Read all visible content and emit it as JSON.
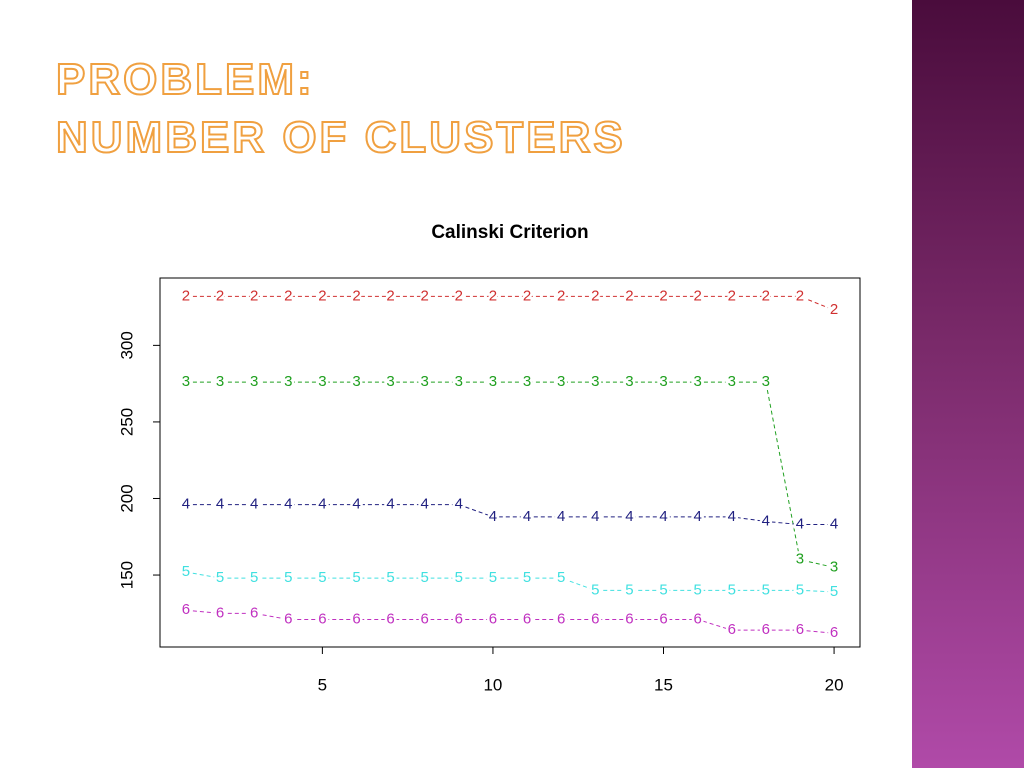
{
  "slide": {
    "title_lines": [
      "PROBLEM:",
      "NUMBER OF CLUSTERS"
    ]
  },
  "chart_data": {
    "type": "line",
    "title": "Calinski Criterion",
    "x": [
      1,
      2,
      3,
      4,
      5,
      6,
      7,
      8,
      9,
      10,
      11,
      12,
      13,
      14,
      15,
      16,
      17,
      18,
      19,
      20
    ],
    "series": [
      {
        "name": "2",
        "color": "#d03030",
        "values": [
          332,
          332,
          332,
          332,
          332,
          332,
          332,
          332,
          332,
          332,
          332,
          332,
          332,
          332,
          332,
          332,
          332,
          332,
          332,
          323
        ]
      },
      {
        "name": "3",
        "color": "#20a020",
        "values": [
          276,
          276,
          276,
          276,
          276,
          276,
          276,
          276,
          276,
          276,
          276,
          276,
          276,
          276,
          276,
          276,
          276,
          276,
          160,
          155
        ]
      },
      {
        "name": "4",
        "color": "#202080",
        "values": [
          196,
          196,
          196,
          196,
          196,
          196,
          196,
          196,
          196,
          188,
          188,
          188,
          188,
          188,
          188,
          188,
          188,
          185,
          183,
          183
        ]
      },
      {
        "name": "5",
        "color": "#40e0e0",
        "values": [
          152,
          148,
          148,
          148,
          148,
          148,
          148,
          148,
          148,
          148,
          148,
          148,
          140,
          140,
          140,
          140,
          140,
          140,
          140,
          139
        ]
      },
      {
        "name": "6",
        "color": "#c030c0",
        "values": [
          127,
          125,
          125,
          121,
          121,
          121,
          121,
          121,
          121,
          121,
          121,
          121,
          121,
          121,
          121,
          121,
          114,
          114,
          114,
          112
        ]
      }
    ],
    "xlim": [
      0.24,
      20.76
    ],
    "xticks": [
      5,
      10,
      15,
      20
    ],
    "ylim": [
      103,
      344
    ],
    "yticks": [
      150,
      200,
      250,
      300
    ]
  }
}
